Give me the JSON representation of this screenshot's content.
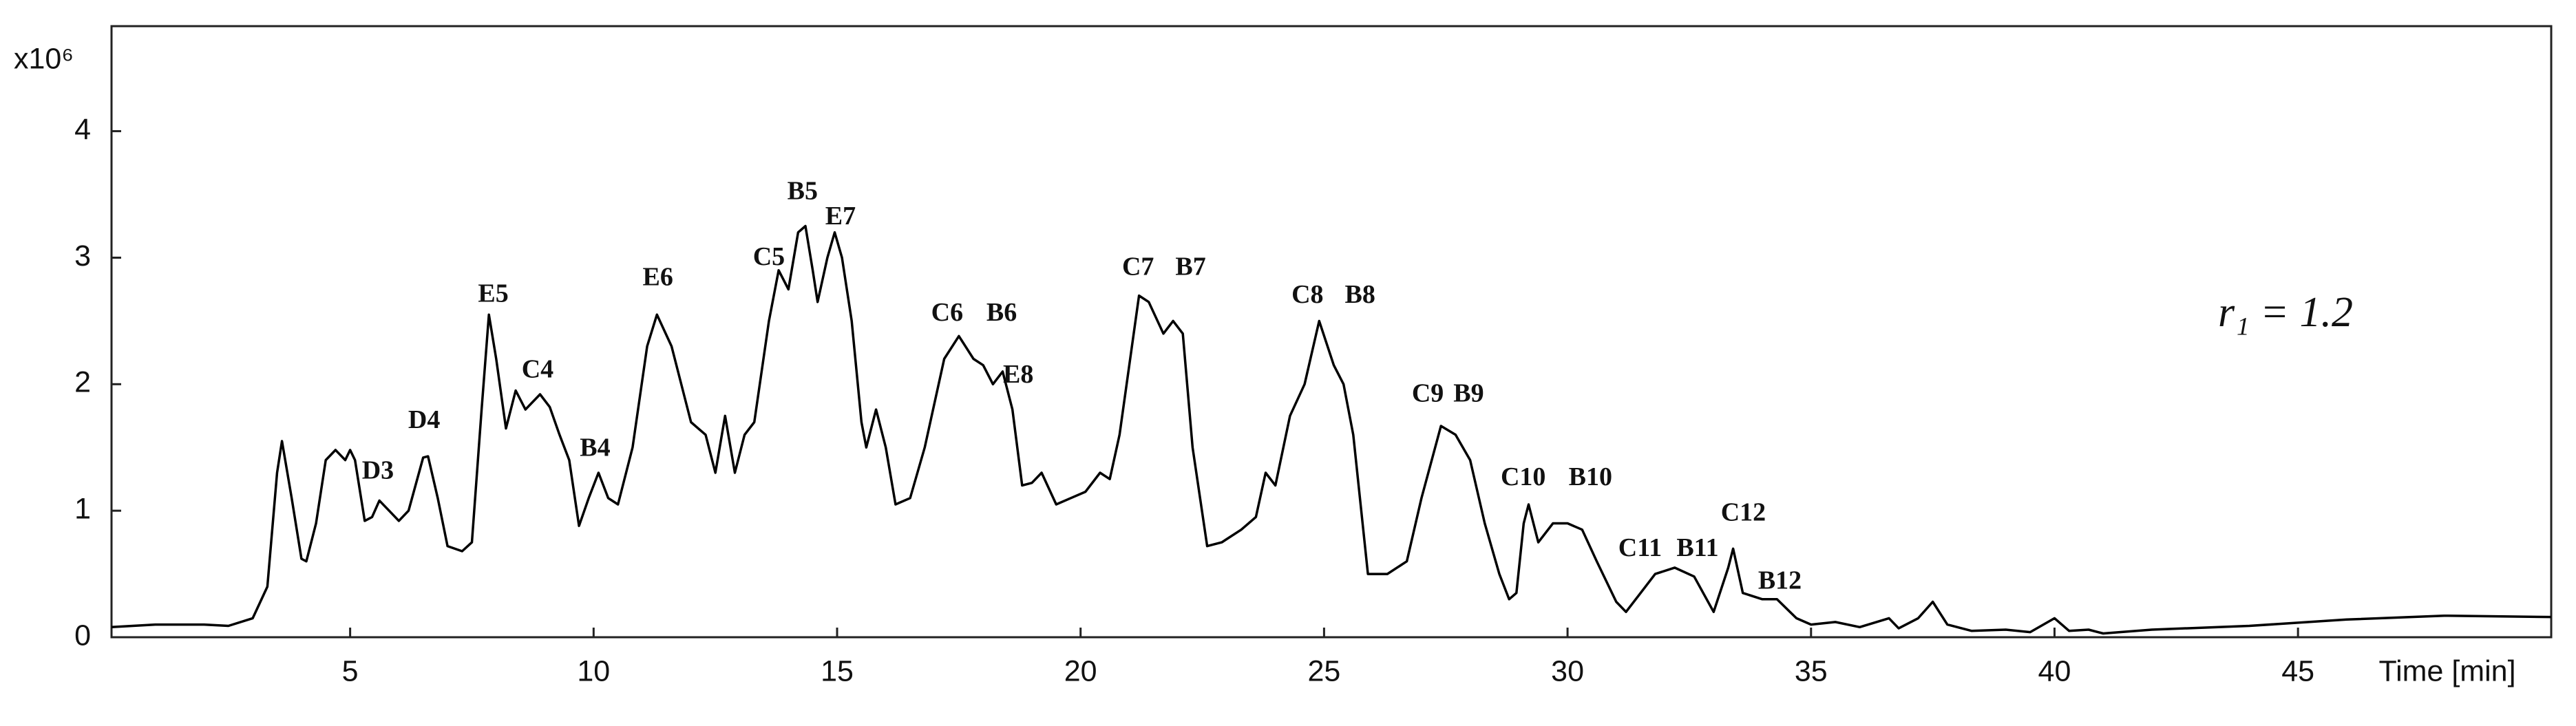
{
  "chart_data": {
    "type": "line",
    "y_label": "x10⁶",
    "x_label": "Time [min]",
    "formula": "r₁ = 1.2",
    "color": "#000000",
    "xlim": [
      0.1,
      50.2
    ],
    "ylim": [
      0,
      4.83
    ],
    "xticks": [
      5,
      10,
      15,
      20,
      25,
      30,
      35,
      40,
      45
    ],
    "yticks": [
      0,
      1,
      2,
      3,
      4
    ],
    "x": [
      0.1,
      1,
      2,
      2.5,
      3,
      3.3,
      3.5,
      3.6,
      3.8,
      4.0,
      4.1,
      4.3,
      4.5,
      4.7,
      4.9,
      5.0,
      5.1,
      5.3,
      5.45,
      5.6,
      5.8,
      6.0,
      6.2,
      6.5,
      6.6,
      6.8,
      7.0,
      7.3,
      7.5,
      7.7,
      7.85,
      8.0,
      8.2,
      8.4,
      8.6,
      8.9,
      9.1,
      9.3,
      9.5,
      9.7,
      9.9,
      10.1,
      10.3,
      10.5,
      10.8,
      11.1,
      11.3,
      11.6,
      12.0,
      12.3,
      12.5,
      12.7,
      12.9,
      13.1,
      13.3,
      13.6,
      13.8,
      14.0,
      14.2,
      14.35,
      14.5,
      14.6,
      14.8,
      14.95,
      15.1,
      15.3,
      15.5,
      15.6,
      15.8,
      16.0,
      16.2,
      16.5,
      16.8,
      17.2,
      17.5,
      17.8,
      18.0,
      18.2,
      18.4,
      18.6,
      18.8,
      19.0,
      19.2,
      19.5,
      19.8,
      20.1,
      20.4,
      20.6,
      20.8,
      21.2,
      21.4,
      21.7,
      21.9,
      22.1,
      22.3,
      22.6,
      22.9,
      23.3,
      23.6,
      23.8,
      24.0,
      24.3,
      24.6,
      24.9,
      25.2,
      25.4,
      25.6,
      25.9,
      26.3,
      26.7,
      27.0,
      27.4,
      27.7,
      28.0,
      28.3,
      28.6,
      28.8,
      28.95,
      29.1,
      29.2,
      29.4,
      29.7,
      30.0,
      30.3,
      30.6,
      31.0,
      31.2,
      31.5,
      31.8,
      32.2,
      32.6,
      33.0,
      33.3,
      33.4,
      33.6,
      34.0,
      34.3,
      34.7,
      35.0,
      35.5,
      36.0,
      36.6,
      36.8,
      37.2,
      37.5,
      37.8,
      38.3,
      39.0,
      39.5,
      40.0,
      40.3,
      40.7,
      41.0,
      42.0,
      44.0,
      46.0,
      48.0,
      50.2
    ],
    "values": [
      0.08,
      0.1,
      0.1,
      0.09,
      0.15,
      0.4,
      1.3,
      1.55,
      1.1,
      0.62,
      0.6,
      0.9,
      1.4,
      1.48,
      1.4,
      1.48,
      1.4,
      0.92,
      0.95,
      1.08,
      1.0,
      0.92,
      1.0,
      1.42,
      1.43,
      1.1,
      0.72,
      0.68,
      0.75,
      1.8,
      2.55,
      2.2,
      1.65,
      1.95,
      1.8,
      1.92,
      1.82,
      1.6,
      1.4,
      0.88,
      1.1,
      1.3,
      1.1,
      1.05,
      1.5,
      2.3,
      2.55,
      2.3,
      1.7,
      1.6,
      1.3,
      1.75,
      1.3,
      1.6,
      1.7,
      2.5,
      2.9,
      2.75,
      3.2,
      3.25,
      2.9,
      2.65,
      3.0,
      3.2,
      3.0,
      2.5,
      1.7,
      1.5,
      1.8,
      1.5,
      1.05,
      1.1,
      1.5,
      2.2,
      2.38,
      2.2,
      2.15,
      2.0,
      2.1,
      1.8,
      1.2,
      1.22,
      1.3,
      1.05,
      1.1,
      1.15,
      1.3,
      1.25,
      1.6,
      2.7,
      2.65,
      2.4,
      2.5,
      2.4,
      1.5,
      0.72,
      0.75,
      0.85,
      0.95,
      1.3,
      1.2,
      1.75,
      2.0,
      2.5,
      2.15,
      2.0,
      1.6,
      0.5,
      0.5,
      0.6,
      1.1,
      1.67,
      1.6,
      1.4,
      0.9,
      0.5,
      0.3,
      0.35,
      0.9,
      1.05,
      0.75,
      0.9,
      0.9,
      0.85,
      0.6,
      0.28,
      0.2,
      0.35,
      0.5,
      0.55,
      0.48,
      0.2,
      0.55,
      0.7,
      0.35,
      0.3,
      0.3,
      0.15,
      0.1,
      0.12,
      0.08,
      0.15,
      0.07,
      0.15,
      0.28,
      0.1,
      0.05,
      0.06,
      0.04,
      0.15,
      0.05,
      0.06,
      0.03,
      0.06,
      0.09,
      0.14,
      0.17,
      0.16
    ],
    "annotations": [
      {
        "text": "D3",
        "x": 5.57,
        "y": 1.3
      },
      {
        "text": "D4",
        "x": 6.52,
        "y": 1.7
      },
      {
        "text": "E5",
        "x": 7.94,
        "y": 2.7
      },
      {
        "text": "C4",
        "x": 8.85,
        "y": 2.1
      },
      {
        "text": "B4",
        "x": 10.03,
        "y": 1.48
      },
      {
        "text": "E6",
        "x": 11.32,
        "y": 2.83
      },
      {
        "text": "C5",
        "x": 13.6,
        "y": 2.99
      },
      {
        "text": "B5",
        "x": 14.29,
        "y": 3.51
      },
      {
        "text": "E7",
        "x": 15.07,
        "y": 3.31
      },
      {
        "text": "C6",
        "x": 17.26,
        "y": 2.55
      },
      {
        "text": "B6",
        "x": 18.38,
        "y": 2.55
      },
      {
        "text": "E8",
        "x": 18.72,
        "y": 2.06
      },
      {
        "text": "C7",
        "x": 21.18,
        "y": 2.91
      },
      {
        "text": "B7",
        "x": 22.26,
        "y": 2.91
      },
      {
        "text": "C8",
        "x": 24.66,
        "y": 2.69
      },
      {
        "text": "B8",
        "x": 25.74,
        "y": 2.69
      },
      {
        "text": "C9",
        "x": 27.13,
        "y": 1.91
      },
      {
        "text": "B9",
        "x": 27.97,
        "y": 1.91
      },
      {
        "text": "C10",
        "x": 29.09,
        "y": 1.25
      },
      {
        "text": "B10",
        "x": 30.47,
        "y": 1.25
      },
      {
        "text": "C11",
        "x": 31.49,
        "y": 0.69
      },
      {
        "text": "B11",
        "x": 32.67,
        "y": 0.69
      },
      {
        "text": "C12",
        "x": 33.61,
        "y": 0.97
      },
      {
        "text": "B12",
        "x": 34.36,
        "y": 0.43
      }
    ]
  }
}
